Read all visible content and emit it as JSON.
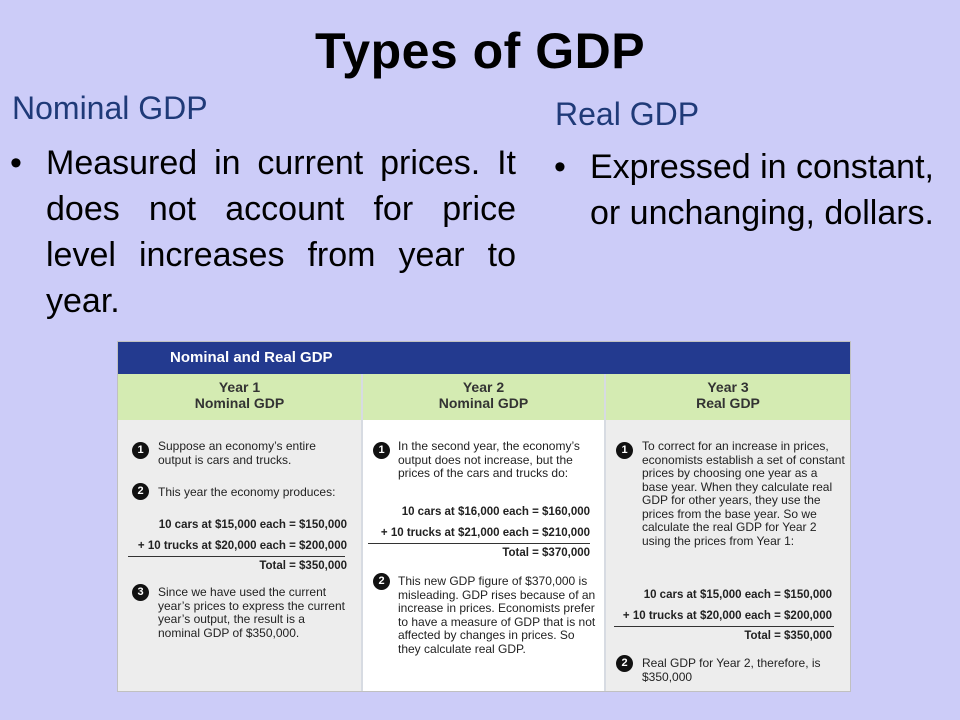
{
  "title": "Types of GDP",
  "nominal": {
    "heading": "Nominal GDP",
    "bullet": "Measured in current prices. It does not account for price level increases from year to year."
  },
  "real": {
    "heading": "Real GDP",
    "bullet": "Expressed in constant, or unchanging, dollars."
  },
  "bullet_glyph": "•",
  "figure": {
    "title": "Nominal and Real GDP",
    "col1": {
      "head1": "Year 1",
      "head2": "Nominal GDP",
      "n1": "1",
      "text1": "Suppose an economy’s entire output is cars and trucks.",
      "n2": "2",
      "text2": "This year the economy produces:",
      "calc1": "10 cars at $15,000 each = $150,000",
      "calc2": "+ 10 trucks at $20,000 each = $200,000",
      "total": "Total = $350,000",
      "n3": "3",
      "text3": "Since we have used the current year’s prices to express the current year’s output, the result is a nominal GDP of $350,000."
    },
    "col2": {
      "head1": "Year 2",
      "head2": "Nominal GDP",
      "n1": "1",
      "text1": "In the second year, the economy’s output does not increase, but the prices of the cars and trucks do:",
      "calc1": "10 cars at $16,000 each = $160,000",
      "calc2": "+ 10 trucks at $21,000 each = $210,000",
      "total": "Total = $370,000",
      "n2": "2",
      "text2": "This new GDP figure of $370,000 is misleading. GDP rises because of an increase in prices. Economists prefer to have a measure of GDP that is not affected by changes in prices. So they calculate real GDP."
    },
    "col3": {
      "head1": "Year 3",
      "head2": "Real GDP",
      "n1": "1",
      "text1": "To correct for an increase in prices, economists establish a set of constant prices by choosing one year as a base year. When they calculate real GDP for other years, they use the prices from the base year. So we calculate the real GDP for Year 2 using the prices from Year 1:",
      "calc1": "10 cars at $15,000 each = $150,000",
      "calc2": "+ 10 trucks at $20,000 each = $200,000",
      "total": "Total = $350,000",
      "n2": "2",
      "text2": "Real GDP for Year 2, therefore, is $350,000"
    }
  }
}
